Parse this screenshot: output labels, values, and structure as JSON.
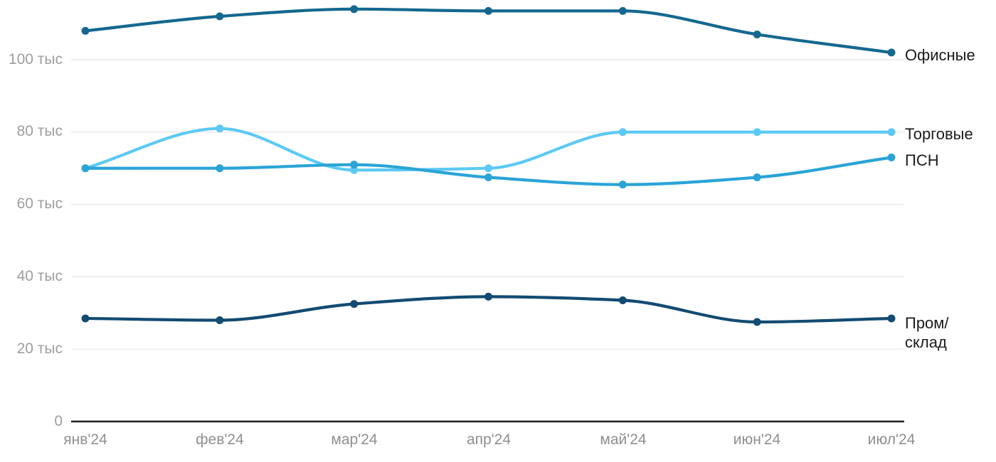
{
  "chart_data": {
    "type": "line",
    "title": "",
    "xlabel": "",
    "ylabel": "",
    "unit": "тыс",
    "categories": [
      "янв'24",
      "фев'24",
      "мар'24",
      "апр'24",
      "май'24",
      "июн'24",
      "июл'24"
    ],
    "y_ticks": [
      {
        "value": 0,
        "label": "0"
      },
      {
        "value": 20,
        "label": "20 тыс"
      },
      {
        "value": 40,
        "label": "40 тыс"
      },
      {
        "value": 60,
        "label": "60 тыс"
      },
      {
        "value": 80,
        "label": "80 тыс"
      },
      {
        "value": 100,
        "label": "100 тыс"
      }
    ],
    "ylim": [
      0,
      116
    ],
    "grid": "horizontal",
    "legend_position": "right-edge-labels",
    "series": [
      {
        "name": "Офисные",
        "color": "#14688f",
        "values": [
          108,
          112,
          114,
          113.5,
          113.5,
          107,
          102
        ]
      },
      {
        "name": "Торговые",
        "color": "#5cc9f5",
        "values": [
          70,
          81,
          69.5,
          70,
          80,
          80,
          80
        ]
      },
      {
        "name": "ПСН",
        "color": "#2aa4d6",
        "values": [
          70,
          70,
          71,
          67.5,
          65.5,
          67.5,
          73
        ]
      },
      {
        "name": "Пром/склад",
        "color": "#134b72",
        "values": [
          28.5,
          28,
          32.5,
          34.5,
          33.5,
          27.5,
          28.5
        ]
      }
    ],
    "colors": {
      "gridline": "#e8e8e8",
      "axis": "#1f1f1f",
      "tick_text": "#9e9e9e",
      "label_text": "#1b1b1b"
    }
  }
}
